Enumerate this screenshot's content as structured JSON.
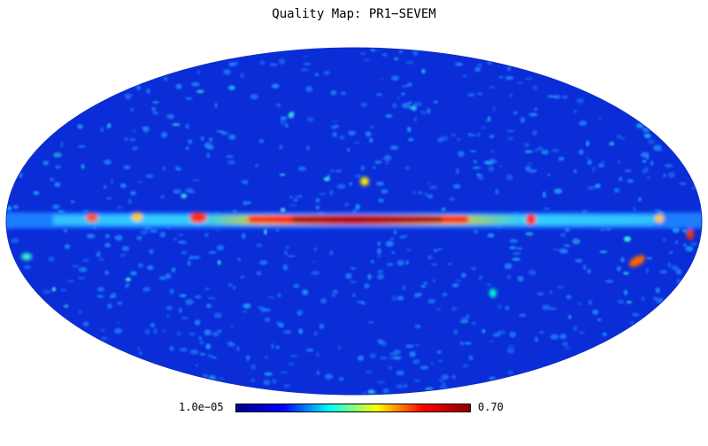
{
  "title": "Quality Map: PR1−SEVEM",
  "colorbar": {
    "min_label": "1.0e−05",
    "max_label": "0.70",
    "colormap": "jet",
    "stops": [
      "#00008b",
      "#0000ff",
      "#00ffff",
      "#ffff00",
      "#ff0000",
      "#8b0000"
    ]
  },
  "map": {
    "projection": "mollweide",
    "background_color": "#0a2dd8",
    "dominant_feature": "galactic plane band",
    "noise_color": "#2a8cff"
  }
}
